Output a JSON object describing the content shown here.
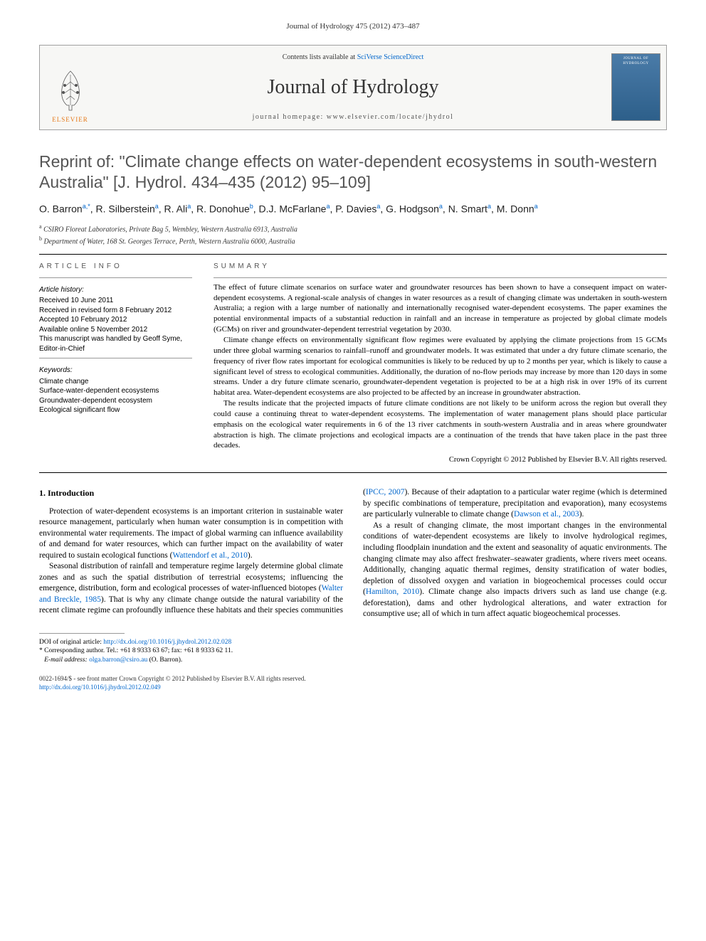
{
  "citation": "Journal of Hydrology 475 (2012) 473–487",
  "banner": {
    "contents_prefix": "Contents lists available at ",
    "contents_link": "SciVerse ScienceDirect",
    "journal_name": "Journal of Hydrology",
    "homepage_prefix": "journal homepage: ",
    "homepage_url": "www.elsevier.com/locate/jhydrol",
    "publisher": "ELSEVIER",
    "cover_label": "HYDROLOGY"
  },
  "title": "Reprint of: \"Climate change effects on water-dependent ecosystems in south-western Australia\" [J. Hydrol. 434–435 (2012) 95–109]",
  "authors_html": "O. Barron<sup>a,*</sup>, R. Silberstein<sup>a</sup>, R. Ali<sup>a</sup>, R. Donohue<sup>b</sup>, D.J. McFarlane<sup>a</sup>, P. Davies<sup>a</sup>, G. Hodgson<sup>a</sup>, N. Smart<sup>a</sup>, M. Donn<sup>a</sup>",
  "affiliations": [
    {
      "sup": "a",
      "text": "CSIRO Floreat Laboratories, Private Bag 5, Wembley, Western Australia 6913, Australia"
    },
    {
      "sup": "b",
      "text": "Department of Water, 168 St. Georges Terrace, Perth, Western Australia 6000, Australia"
    }
  ],
  "info": {
    "section_label": "ARTICLE INFO",
    "history_head": "Article history:",
    "history": [
      "Received 10 June 2011",
      "Received in revised form 8 February 2012",
      "Accepted 10 February 2012",
      "Available online 5 November 2012",
      "This manuscript was handled by Geoff Syme, Editor-in-Chief"
    ],
    "keywords_head": "Keywords:",
    "keywords": [
      "Climate change",
      "Surface-water-dependent ecosystems",
      "Groundwater-dependent ecosystem",
      "Ecological significant flow"
    ]
  },
  "summary": {
    "section_label": "SUMMARY",
    "paragraphs": [
      "The effect of future climate scenarios on surface water and groundwater resources has been shown to have a consequent impact on water-dependent ecosystems. A regional-scale analysis of changes in water resources as a result of changing climate was undertaken in south-western Australia; a region with a large number of nationally and internationally recognised water-dependent ecosystems. The paper examines the potential environmental impacts of a substantial reduction in rainfall and an increase in temperature as projected by global climate models (GCMs) on river and groundwater-dependent terrestrial vegetation by 2030.",
      "Climate change effects on environmentally significant flow regimes were evaluated by applying the climate projections from 15 GCMs under three global warming scenarios to rainfall–runoff and groundwater models. It was estimated that under a dry future climate scenario, the frequency of river flow rates important for ecological communities is likely to be reduced by up to 2 months per year, which is likely to cause a significant level of stress to ecological communities. Additionally, the duration of no-flow periods may increase by more than 120 days in some streams. Under a dry future climate scenario, groundwater-dependent vegetation is projected to be at a high risk in over 19% of its current habitat area. Water-dependent ecosystems are also projected to be affected by an increase in groundwater abstraction.",
      "The results indicate that the projected impacts of future climate conditions are not likely to be uniform across the region but overall they could cause a continuing threat to water-dependent ecosystems. The implementation of water management plans should place particular emphasis on the ecological water requirements in 6 of the 13 river catchments in south-western Australia and in areas where groundwater abstraction is high. The climate projections and ecological impacts are a continuation of the trends that have taken place in the past three decades."
    ],
    "copyright": "Crown Copyright © 2012 Published by Elsevier B.V. All rights reserved."
  },
  "body": {
    "heading": "1. Introduction",
    "p1_a": "Protection of water-dependent ecosystems is an important criterion in sustainable water resource management, particularly when human water consumption is in competition with environmental water requirements. The impact of global warming can influence availability of and demand for water resources, which can further impact on the availability of water required to sustain ecological functions (",
    "p1_cite": "Wattendorf et al., 2010",
    "p1_b": ").",
    "p2_a": "Seasonal distribution of rainfall and temperature regime largely determine global climate zones and as such the spatial distribution of terrestrial ecosystems; influencing the emergence, distribution, form and ecological processes of water-influenced biotopes (",
    "p2_cite": "Walter and Breckle, 1985",
    "p2_b": "). That is why any climate change outside the natural variability of the recent climate regime can profoundly influence these habitats and their species communities (",
    "p2_cite2": "IPCC, 2007",
    "p2_c": "). Because of their adaptation to a particular water regime (which is determined by specific combinations of temperature, precipitation and evaporation), many ecosystems are particularly vulnerable to climate change (",
    "p2_cite3": "Dawson et al., 2003",
    "p2_d": ").",
    "p3_a": "As a result of changing climate, the most important changes in the environmental conditions of water-dependent ecosystems are likely to involve hydrological regimes, including floodplain inundation and the extent and seasonality of aquatic environments. The changing climate may also affect freshwater–seawater gradients, where rivers meet oceans. Additionally, changing aquatic thermal regimes, density stratification of water bodies, depletion of dissolved oxygen and variation in biogeochemical processes could occur (",
    "p3_cite": "Hamilton, 2010",
    "p3_b": "). Climate change also impacts drivers such as land use change (e.g. deforestation), dams and other hydrological alterations, and water extraction for consumptive use; all of which in turn affect aquatic biogeochemical processes."
  },
  "footnotes": {
    "doi_prefix": "DOI of original article: ",
    "doi": "http://dx.doi.org/10.1016/j.jhydrol.2012.02.028",
    "corr": "* Corresponding author. Tel.: +61 8 9333 63 67; fax: +61 8 9333 62 11.",
    "email_label": "E-mail address: ",
    "email": "olga.barron@csiro.au",
    "email_suffix": " (O. Barron)."
  },
  "footer": {
    "line1": "0022-1694/$ - see front matter Crown Copyright © 2012 Published by Elsevier B.V. All rights reserved.",
    "line2": "http://dx.doi.org/10.1016/j.jhydrol.2012.02.049"
  }
}
